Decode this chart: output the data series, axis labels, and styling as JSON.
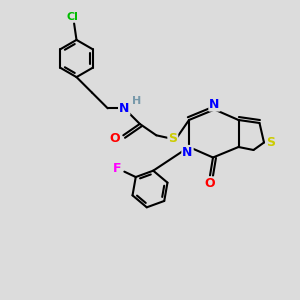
{
  "background_color": "#dcdcdc",
  "atom_colors": {
    "C": "#000000",
    "N": "#0000ff",
    "O": "#ff0000",
    "S": "#cccc00",
    "F": "#ff00ff",
    "Cl": "#00bb00",
    "H": "#7799aa"
  },
  "bond_color": "#000000",
  "bond_width": 1.5,
  "figsize": [
    3.0,
    3.0
  ],
  "dpi": 100
}
